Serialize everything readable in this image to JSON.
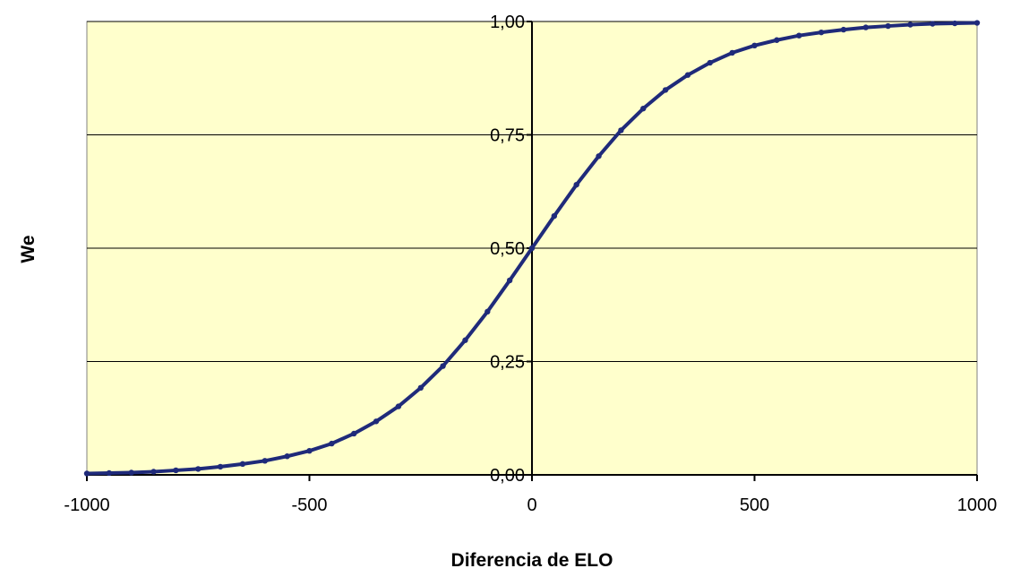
{
  "chart_data": {
    "type": "scatter",
    "title": "",
    "xlabel": "Diferencia de ELO",
    "ylabel": "We",
    "xlim": [
      -1000,
      1000
    ],
    "ylim": [
      0,
      1
    ],
    "x_ticks": [
      -1000,
      -500,
      0,
      500,
      1000
    ],
    "x_tick_labels": [
      "-1000",
      "-500",
      "0",
      "500",
      "1000"
    ],
    "y_ticks": [
      0,
      0.25,
      0.5,
      0.75,
      1
    ],
    "y_tick_labels": [
      "0,00",
      "0,25",
      "0,50",
      "0,75",
      "1,00"
    ],
    "grid": "horizontal",
    "legend": "none",
    "plot_background": "#FFFFCC",
    "series_color": "#1F2A7A",
    "series": [
      {
        "x": [
          -1000,
          -950,
          -900,
          -850,
          -800,
          -750,
          -700,
          -650,
          -600,
          -550,
          -500,
          -450,
          -400,
          -350,
          -300,
          -250,
          -200,
          -150,
          -100,
          -50,
          0,
          50,
          100,
          150,
          200,
          250,
          300,
          350,
          400,
          450,
          500,
          550,
          600,
          650,
          700,
          750,
          800,
          850,
          900,
          950,
          1000
        ],
        "y": [
          0.003,
          0.004,
          0.005,
          0.007,
          0.01,
          0.013,
          0.018,
          0.024,
          0.031,
          0.041,
          0.053,
          0.069,
          0.091,
          0.118,
          0.151,
          0.192,
          0.24,
          0.297,
          0.36,
          0.429,
          0.5,
          0.571,
          0.64,
          0.703,
          0.76,
          0.808,
          0.849,
          0.882,
          0.909,
          0.931,
          0.947,
          0.959,
          0.969,
          0.976,
          0.982,
          0.987,
          0.99,
          0.993,
          0.995,
          0.996,
          0.997
        ]
      }
    ]
  }
}
